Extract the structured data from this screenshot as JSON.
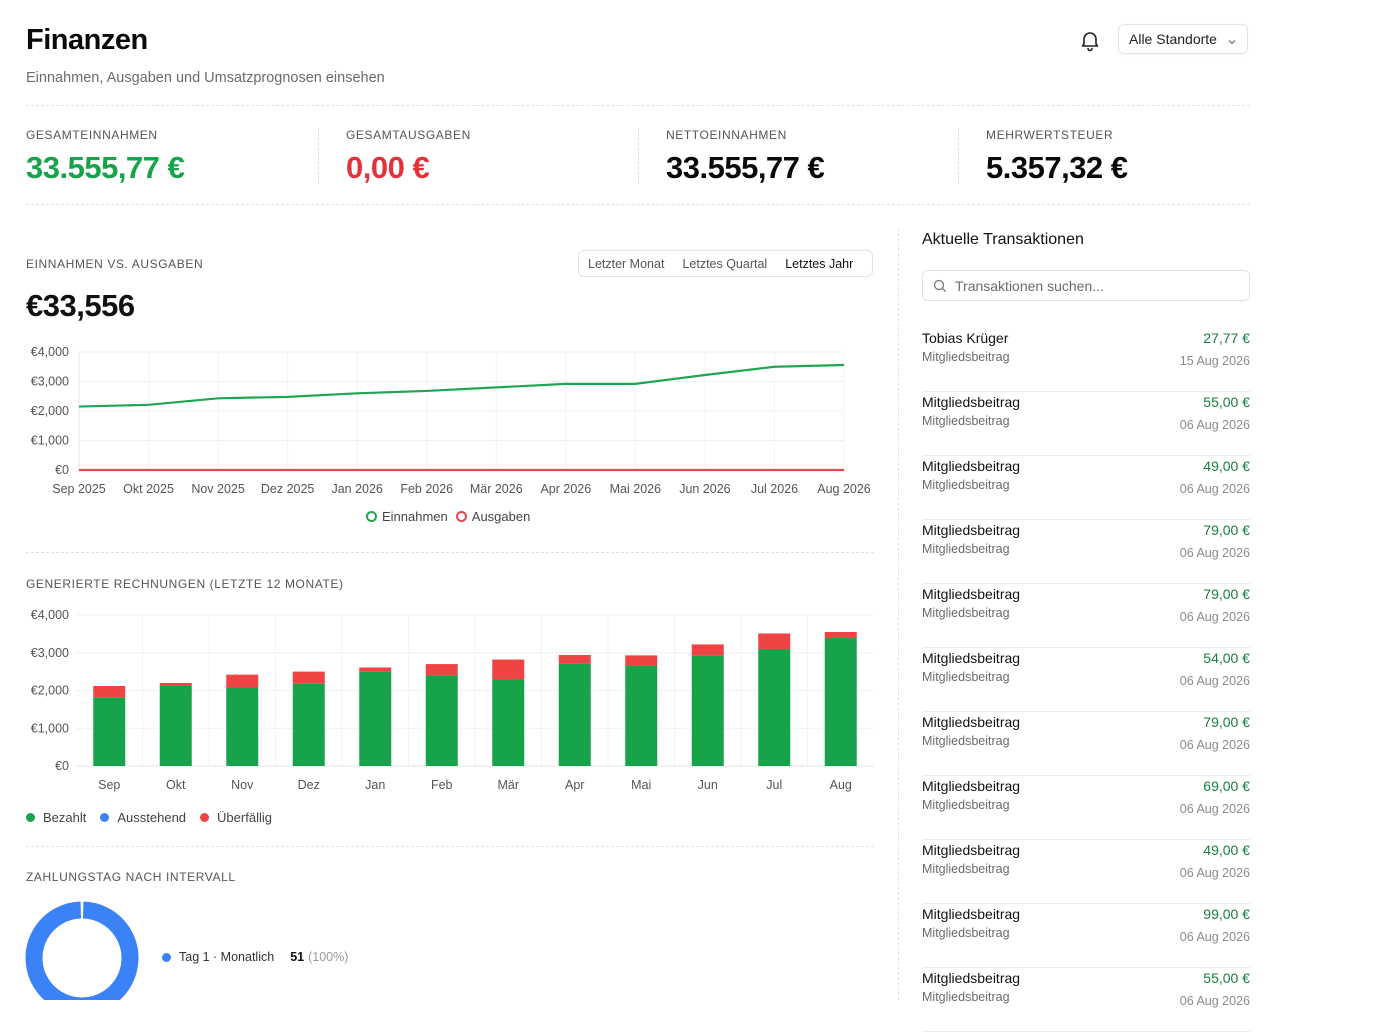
{
  "header": {
    "title": "Finanzen",
    "subtitle": "Einnahmen, Ausgaben und Umsatzprognosen einsehen",
    "location_select": "Alle Standorte",
    "icons": {
      "notifications": "bell-icon",
      "select": "chevron-down-icon"
    }
  },
  "stats": [
    {
      "label": "GESAMTEINNAHMEN",
      "value": "33.555,77 €",
      "color": "#16a34a"
    },
    {
      "label": "GESAMTAUSGABEN",
      "value": "0,00 €",
      "color": "#e5323a"
    },
    {
      "label": "NETTOEINNAHMEN",
      "value": "33.555,77 €",
      "color": "#0a0a0a"
    },
    {
      "label": "MEHRWERTSTEUER",
      "value": "5.357,32 €",
      "color": "#0a0a0a"
    }
  ],
  "income_chart": {
    "section_label": "EINNAHMEN VS. AUSGABEN",
    "range_tabs": [
      "Letzter Monat",
      "Letztes Quartal",
      "Letztes Jahr"
    ],
    "active_tab": "Letztes Jahr",
    "total": "€33,556"
  },
  "invoice_chart": {
    "section_label": "GENERIERTE RECHNUNGEN (LETZTE 12 MONATE)"
  },
  "interval_chart": {
    "section_label": "ZAHLUNGSTAG NACH INTERVALL",
    "items": [
      {
        "label": "Tag 1 · Monatlich",
        "count": "51",
        "percent": "(100%)",
        "color": "#3b82f6"
      }
    ]
  },
  "transactions": {
    "title": "Aktuelle Transaktionen",
    "search_placeholder": "Transaktionen suchen...",
    "icons": {
      "search": "search-icon"
    },
    "items": [
      {
        "name": "Tobias Krüger",
        "sub": "Mitgliedsbeitrag",
        "amount": "27,77 €",
        "date": "15 Aug 2026"
      },
      {
        "name": "Mitgliedsbeitrag",
        "sub": "Mitgliedsbeitrag",
        "amount": "55,00 €",
        "date": "06 Aug 2026"
      },
      {
        "name": "Mitgliedsbeitrag",
        "sub": "Mitgliedsbeitrag",
        "amount": "49,00 €",
        "date": "06 Aug 2026"
      },
      {
        "name": "Mitgliedsbeitrag",
        "sub": "Mitgliedsbeitrag",
        "amount": "79,00 €",
        "date": "06 Aug 2026"
      },
      {
        "name": "Mitgliedsbeitrag",
        "sub": "Mitgliedsbeitrag",
        "amount": "79,00 €",
        "date": "06 Aug 2026"
      },
      {
        "name": "Mitgliedsbeitrag",
        "sub": "Mitgliedsbeitrag",
        "amount": "54,00 €",
        "date": "06 Aug 2026"
      },
      {
        "name": "Mitgliedsbeitrag",
        "sub": "Mitgliedsbeitrag",
        "amount": "79,00 €",
        "date": "06 Aug 2026"
      },
      {
        "name": "Mitgliedsbeitrag",
        "sub": "Mitgliedsbeitrag",
        "amount": "69,00 €",
        "date": "06 Aug 2026"
      },
      {
        "name": "Mitgliedsbeitrag",
        "sub": "Mitgliedsbeitrag",
        "amount": "49,00 €",
        "date": "06 Aug 2026"
      },
      {
        "name": "Mitgliedsbeitrag",
        "sub": "Mitgliedsbeitrag",
        "amount": "99,00 €",
        "date": "06 Aug 2026"
      },
      {
        "name": "Mitgliedsbeitrag",
        "sub": "Mitgliedsbeitrag",
        "amount": "55,00 €",
        "date": "06 Aug 2026"
      }
    ]
  },
  "chart_data": [
    {
      "type": "line",
      "x": [
        "Sep 2025",
        "Okt 2025",
        "Nov 2025",
        "Dez 2025",
        "Jan 2026",
        "Feb 2026",
        "Mär 2026",
        "Apr 2026",
        "Mai 2026",
        "Jun 2026",
        "Jul 2026",
        "Aug 2026"
      ],
      "series": [
        {
          "name": "Einnahmen",
          "color": "#22a552",
          "values": [
            2150,
            2210,
            2430,
            2480,
            2600,
            2680,
            2800,
            2920,
            2920,
            3220,
            3500,
            3560
          ]
        },
        {
          "name": "Ausgaben",
          "color": "#e5484d",
          "values": [
            0,
            0,
            0,
            0,
            0,
            0,
            0,
            0,
            0,
            0,
            0,
            0
          ]
        }
      ],
      "y_ticks": [
        "€0",
        "€1,000",
        "€2,000",
        "€3,000",
        "€4,000"
      ],
      "ylim": [
        0,
        4000
      ],
      "grid": true,
      "legend": "bottom-center"
    },
    {
      "type": "bar",
      "stacked": true,
      "categories": [
        "Sep",
        "Okt",
        "Nov",
        "Dez",
        "Jan",
        "Feb",
        "Mär",
        "Apr",
        "Mai",
        "Jun",
        "Jul",
        "Aug"
      ],
      "series": [
        {
          "name": "Bezahlt",
          "color": "#16a34a",
          "values": [
            1820,
            2120,
            2080,
            2180,
            2500,
            2400,
            2290,
            2720,
            2660,
            2930,
            3100,
            3390
          ]
        },
        {
          "name": "Ausstehend",
          "color": "#3b82f6",
          "values": [
            0,
            0,
            0,
            0,
            0,
            0,
            0,
            0,
            0,
            0,
            0,
            0
          ]
        },
        {
          "name": "Überfällig",
          "color": "#ef4444",
          "values": [
            300,
            80,
            340,
            320,
            110,
            300,
            530,
            220,
            270,
            290,
            410,
            160
          ]
        }
      ],
      "y_ticks": [
        "€0",
        "€1,000",
        "€2,000",
        "€3,000",
        "€4,000"
      ],
      "ylim": [
        0,
        4000
      ],
      "grid": true,
      "legend": "bottom-left"
    },
    {
      "type": "pie",
      "donut": true,
      "slices": [
        {
          "label": "Tag 1 · Monatlich",
          "value": 51,
          "percent": 100,
          "color": "#3b82f6"
        }
      ]
    }
  ]
}
